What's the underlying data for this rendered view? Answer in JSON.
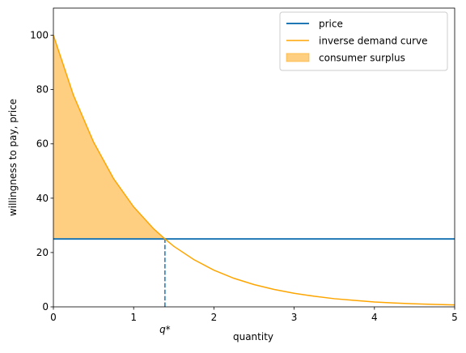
{
  "chart_data": {
    "type": "line",
    "xlabel": "quantity",
    "ylabel": "willingness to pay, price",
    "xlim": [
      0,
      5
    ],
    "ylim": [
      0,
      110
    ],
    "xticks": [
      0,
      1,
      2,
      3,
      4,
      5
    ],
    "yticks": [
      0,
      20,
      40,
      60,
      80,
      100
    ],
    "legend": "upper right",
    "series": [
      {
        "name": "price",
        "color": "#1f77b4",
        "style": "line",
        "width": 2,
        "x": [
          0,
          5
        ],
        "values": [
          25,
          25
        ]
      },
      {
        "name": "inverse demand curve",
        "color": "#ffa500",
        "style": "line",
        "width": 1.5,
        "x": [
          0,
          0.25,
          0.5,
          0.75,
          1,
          1.25,
          1.39,
          1.5,
          1.75,
          2,
          2.25,
          2.5,
          2.75,
          3,
          3.25,
          3.5,
          3.75,
          4,
          4.25,
          4.5,
          4.75,
          5
        ],
        "values": [
          100,
          77.9,
          60.7,
          47.2,
          36.8,
          28.7,
          25,
          22.3,
          17.4,
          13.5,
          10.5,
          8.2,
          6.4,
          5.0,
          3.9,
          3.0,
          2.4,
          1.8,
          1.4,
          1.1,
          0.9,
          0.7
        ]
      },
      {
        "name": "consumer surplus",
        "color": "#fecf80",
        "style": "area",
        "x": [
          0,
          0.25,
          0.5,
          0.75,
          1,
          1.25,
          1.39
        ],
        "values": [
          100,
          77.9,
          60.7,
          47.2,
          36.8,
          28.7,
          25
        ],
        "base": 25
      }
    ],
    "annotation": {
      "label": "q*",
      "x": 1.39,
      "y": 25,
      "color": "#1f77b4"
    }
  }
}
